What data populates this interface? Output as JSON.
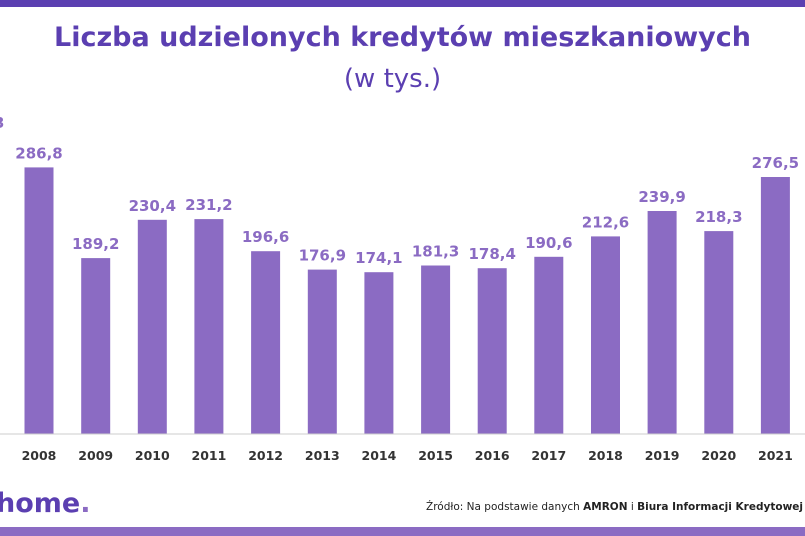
{
  "header": {
    "title": "Liczba udzielonych kredytów mieszkaniowych",
    "subtitle": "(w tys.)"
  },
  "edge": {
    "left_fragment": "3"
  },
  "footer": {
    "logo_text": "home",
    "logo_dot": ".",
    "source_prefix": "Źródło: Na podstawie danych ",
    "source_bold1": "AMRON",
    "source_mid": " i ",
    "source_bold2": "Biura Informacji Kredytowej"
  },
  "colors": {
    "bar": "#8b6bc3",
    "title": "#5b3fb1",
    "axis": "#cccccc"
  },
  "chart_data": {
    "type": "bar",
    "title": "Liczba udzielonych kredytów mieszkaniowych",
    "subtitle": "(w tys.)",
    "categories": [
      "2008",
      "2009",
      "2010",
      "2011",
      "2012",
      "2013",
      "2014",
      "2015",
      "2016",
      "2017",
      "2018",
      "2019",
      "2020",
      "2021"
    ],
    "values": [
      286.8,
      189.2,
      230.4,
      231.2,
      196.6,
      176.9,
      174.1,
      181.3,
      178.4,
      190.6,
      212.6,
      239.9,
      218.3,
      276.5
    ],
    "value_labels": [
      "286,8",
      "189,2",
      "230,4",
      "231,2",
      "196,6",
      "176,9",
      "174,1",
      "181,3",
      "178,4",
      "190,6",
      "212,6",
      "239,9",
      "218,3",
      "276,5"
    ],
    "ylim": [
      0,
      300
    ],
    "grid": false,
    "legend": "none"
  }
}
